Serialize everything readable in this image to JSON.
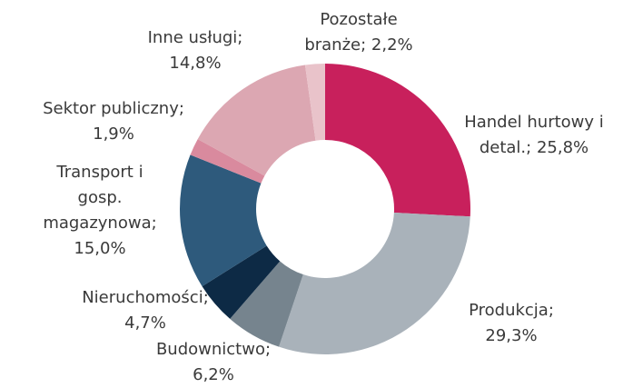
{
  "chart_data": {
    "type": "donut",
    "categories": [
      "Handel hurtowy i detal.;",
      "Produkcja;",
      "Budownictwo;",
      "Nieruchomości;",
      "Transport i gosp. magazynowa;",
      "Sektor publiczny;",
      "Inne usługi;",
      "Pozostałe branże;"
    ],
    "values": [
      25.8,
      29.3,
      6.2,
      4.7,
      15.0,
      1.9,
      14.8,
      2.2
    ],
    "value_labels": [
      "25,8%",
      "29,3%",
      "6,2%",
      "4,7%",
      "15,0%",
      "1,9%",
      "14,8%",
      "2,2%"
    ],
    "colors": [
      "#c8205c",
      "#a9b2ba",
      "#76848e",
      "#0d2a45",
      "#2e5a7c",
      "#d98a9e",
      "#dca7b2",
      "#e9c3ca"
    ]
  }
}
